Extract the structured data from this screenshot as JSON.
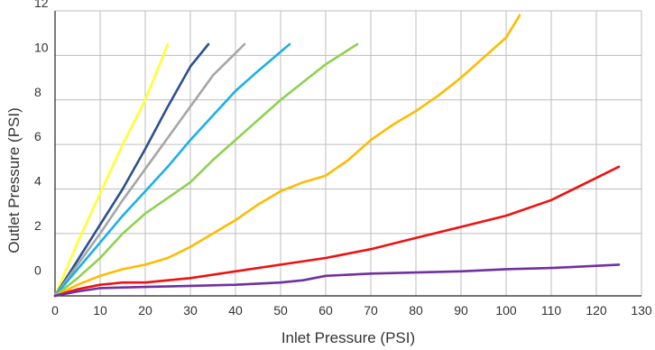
{
  "chart_data": {
    "type": "line",
    "title": "",
    "xlabel": "Inlet Pressure (PSI)",
    "ylabel": "Outlet Pressure (PSI)",
    "xlim": [
      0,
      130
    ],
    "ylim": [
      -0.8,
      12
    ],
    "grid": true,
    "x_ticks": [
      0,
      10,
      20,
      30,
      40,
      50,
      60,
      70,
      80,
      90,
      100,
      110,
      120,
      130
    ],
    "y_ticks": [
      0,
      2,
      4,
      6,
      8,
      10,
      12
    ],
    "series": [
      {
        "color": "#ffff33",
        "points": [
          [
            0,
            -0.8
          ],
          [
            5,
            1.6
          ],
          [
            10,
            3.8
          ],
          [
            15,
            6.0
          ],
          [
            20,
            8.0
          ],
          [
            25,
            10.5
          ]
        ]
      },
      {
        "color": "#2f4f8f",
        "points": [
          [
            0,
            -0.8
          ],
          [
            5,
            0.8
          ],
          [
            10,
            2.4
          ],
          [
            15,
            4.0
          ],
          [
            20,
            5.8
          ],
          [
            25,
            7.7
          ],
          [
            30,
            9.5
          ],
          [
            34,
            10.5
          ]
        ]
      },
      {
        "color": "#a6a6a6",
        "points": [
          [
            0,
            -0.8
          ],
          [
            5,
            0.6
          ],
          [
            10,
            2.0
          ],
          [
            15,
            3.5
          ],
          [
            20,
            4.9
          ],
          [
            25,
            6.3
          ],
          [
            30,
            7.7
          ],
          [
            35,
            9.1
          ],
          [
            42,
            10.5
          ]
        ]
      },
      {
        "color": "#1ab0e8",
        "points": [
          [
            0,
            -0.8
          ],
          [
            5,
            0.4
          ],
          [
            10,
            1.6
          ],
          [
            15,
            2.8
          ],
          [
            20,
            3.9
          ],
          [
            25,
            5.0
          ],
          [
            30,
            6.2
          ],
          [
            35,
            7.3
          ],
          [
            40,
            8.4
          ],
          [
            45,
            9.3
          ],
          [
            52,
            10.5
          ]
        ]
      },
      {
        "color": "#8fd14f",
        "points": [
          [
            0,
            -0.8
          ],
          [
            5,
            0.0
          ],
          [
            10,
            0.9
          ],
          [
            15,
            2.0
          ],
          [
            20,
            2.9
          ],
          [
            25,
            3.6
          ],
          [
            30,
            4.3
          ],
          [
            35,
            5.3
          ],
          [
            40,
            6.2
          ],
          [
            45,
            7.1
          ],
          [
            50,
            8.0
          ],
          [
            55,
            8.8
          ],
          [
            60,
            9.6
          ],
          [
            67,
            10.5
          ]
        ]
      },
      {
        "color": "#ffbb00",
        "points": [
          [
            0,
            -0.8
          ],
          [
            5,
            -0.3
          ],
          [
            10,
            0.1
          ],
          [
            15,
            0.4
          ],
          [
            20,
            0.6
          ],
          [
            25,
            0.9
          ],
          [
            30,
            1.4
          ],
          [
            35,
            2.0
          ],
          [
            40,
            2.6
          ],
          [
            45,
            3.3
          ],
          [
            50,
            3.9
          ],
          [
            55,
            4.3
          ],
          [
            60,
            4.6
          ],
          [
            65,
            5.3
          ],
          [
            70,
            6.2
          ],
          [
            75,
            6.9
          ],
          [
            80,
            7.5
          ],
          [
            85,
            8.2
          ],
          [
            90,
            9.0
          ],
          [
            95,
            9.9
          ],
          [
            100,
            10.8
          ],
          [
            103,
            11.8
          ]
        ]
      },
      {
        "color": "#ee1111",
        "points": [
          [
            0,
            -0.8
          ],
          [
            5,
            -0.5
          ],
          [
            10,
            -0.3
          ],
          [
            15,
            -0.2
          ],
          [
            20,
            -0.2
          ],
          [
            25,
            -0.1
          ],
          [
            30,
            0.0
          ],
          [
            40,
            0.3
          ],
          [
            50,
            0.6
          ],
          [
            60,
            0.9
          ],
          [
            70,
            1.3
          ],
          [
            80,
            1.8
          ],
          [
            90,
            2.3
          ],
          [
            100,
            2.8
          ],
          [
            110,
            3.5
          ],
          [
            120,
            4.5
          ],
          [
            125,
            5.0
          ]
        ]
      },
      {
        "color": "#7030a0",
        "points": [
          [
            0,
            -0.8
          ],
          [
            5,
            -0.6
          ],
          [
            10,
            -0.45
          ],
          [
            20,
            -0.4
          ],
          [
            30,
            -0.35
          ],
          [
            40,
            -0.3
          ],
          [
            50,
            -0.2
          ],
          [
            55,
            -0.1
          ],
          [
            60,
            0.1
          ],
          [
            70,
            0.2
          ],
          [
            80,
            0.25
          ],
          [
            90,
            0.3
          ],
          [
            100,
            0.4
          ],
          [
            110,
            0.45
          ],
          [
            120,
            0.55
          ],
          [
            125,
            0.6
          ]
        ]
      }
    ]
  }
}
